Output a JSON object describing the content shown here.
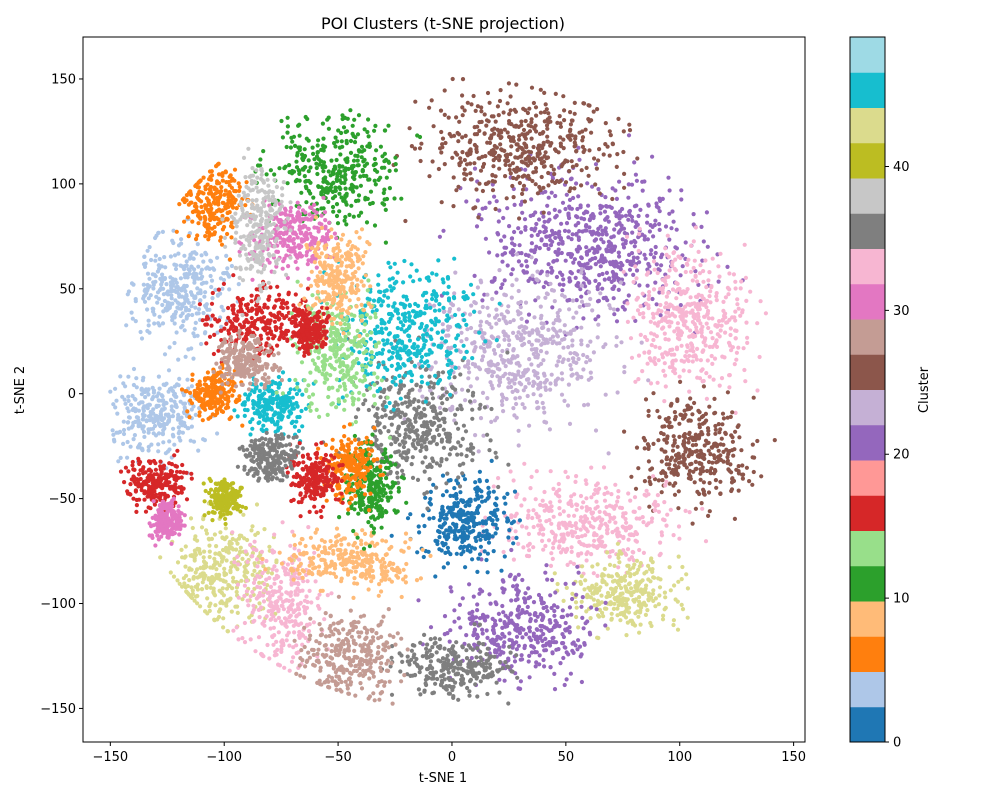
{
  "chart_data": {
    "type": "scatter",
    "title": "POI Clusters (t-SNE projection)",
    "xlabel": "t-SNE 1",
    "ylabel": "t-SNE 2",
    "xlim": [
      -162,
      155
    ],
    "ylim": [
      -166,
      170
    ],
    "xticks": [
      -150,
      -100,
      -50,
      0,
      50,
      100,
      150
    ],
    "yticks": [
      -150,
      -100,
      -50,
      0,
      50,
      100,
      150
    ],
    "grid": false,
    "legend": "none",
    "colorbar": {
      "label": "Cluster",
      "range": [
        0,
        49
      ],
      "ticks": [
        0,
        10,
        20,
        30,
        40
      ],
      "colormap": "tab20",
      "colors": [
        "#1f77b4",
        "#aec7e8",
        "#ff7f0e",
        "#ffbb78",
        "#2ca02c",
        "#98df8a",
        "#d62728",
        "#ff9896",
        "#9467bd",
        "#c5b0d5",
        "#8c564b",
        "#c49c94",
        "#e377c2",
        "#f7b6d2",
        "#7f7f7f",
        "#c7c7c7",
        "#bcbd22",
        "#dbdb8d",
        "#17becf",
        "#9edae5"
      ]
    },
    "series": [
      {
        "cluster": 22,
        "label": "purple upper-right",
        "center": [
          60,
          72
        ],
        "spread": [
          45,
          30
        ]
      },
      {
        "cluster": 26,
        "label": "brown top",
        "center": [
          30,
          118
        ],
        "spread": [
          38,
          22
        ]
      },
      {
        "cluster": 24,
        "label": "lavender center-right",
        "center": [
          30,
          20
        ],
        "spread": [
          35,
          30
        ]
      },
      {
        "cluster": 33,
        "label": "pink right",
        "center": [
          105,
          35
        ],
        "spread": [
          25,
          30
        ]
      },
      {
        "cluster": 26,
        "label": "brown right",
        "center": [
          108,
          -28
        ],
        "spread": [
          22,
          22
        ]
      },
      {
        "cluster": 33,
        "label": "pink lower-right",
        "center": [
          60,
          -62
        ],
        "spread": [
          35,
          18
        ]
      },
      {
        "cluster": 43,
        "label": "olive-light lower-right",
        "center": [
          75,
          -95
        ],
        "spread": [
          22,
          15
        ]
      },
      {
        "cluster": 22,
        "label": "purple bottom",
        "center": [
          30,
          -110
        ],
        "spread": [
          28,
          22
        ]
      },
      {
        "cluster": 37,
        "label": "grey bottom",
        "center": [
          0,
          -130
        ],
        "spread": [
          22,
          12
        ]
      },
      {
        "cluster": 0,
        "label": "blue center-bottom",
        "center": [
          5,
          -60
        ],
        "spread": [
          18,
          20
        ]
      },
      {
        "cluster": 37,
        "label": "grey center",
        "center": [
          -15,
          -15
        ],
        "spread": [
          25,
          25
        ]
      },
      {
        "cluster": 47,
        "label": "light cyan center",
        "center": [
          -20,
          30
        ],
        "spread": [
          25,
          28
        ]
      },
      {
        "cluster": 10,
        "label": "green top",
        "center": [
          -50,
          105
        ],
        "spread": [
          25,
          22
        ]
      },
      {
        "cluster": 30,
        "label": "magenta upper-left",
        "center": [
          -70,
          75
        ],
        "spread": [
          15,
          15
        ]
      },
      {
        "cluster": 4,
        "label": "green left",
        "center": [
          -120,
          50
        ],
        "spread": [
          20,
          22
        ]
      },
      {
        "cluster": 17,
        "label": "salmon left",
        "center": [
          -85,
          35
        ],
        "spread": [
          20,
          15
        ]
      },
      {
        "cluster": 6,
        "label": "orange upper-left",
        "center": [
          -105,
          90
        ],
        "spread": [
          12,
          15
        ]
      },
      {
        "cluster": 3,
        "label": "light blue left",
        "center": [
          -130,
          -10
        ],
        "spread": [
          18,
          18
        ]
      },
      {
        "cluster": 7,
        "label": "orange left",
        "center": [
          -105,
          0
        ],
        "spread": [
          10,
          10
        ]
      },
      {
        "cluster": 45,
        "label": "cyan left",
        "center": [
          -78,
          -5
        ],
        "spread": [
          12,
          12
        ]
      },
      {
        "cluster": 16,
        "label": "red lower-left",
        "center": [
          -130,
          -42
        ],
        "spread": [
          12,
          10
        ]
      },
      {
        "cluster": 43,
        "label": "olive-light lower-left",
        "center": [
          -100,
          -85
        ],
        "spread": [
          20,
          22
        ]
      },
      {
        "cluster": 34,
        "label": "pink lower-left",
        "center": [
          -75,
          -100
        ],
        "spread": [
          15,
          25
        ]
      },
      {
        "cluster": 9,
        "label": "peach bottom",
        "center": [
          -45,
          -80
        ],
        "spread": [
          25,
          12
        ]
      },
      {
        "cluster": 28,
        "label": "tan bottom",
        "center": [
          -45,
          -125
        ],
        "spread": [
          20,
          18
        ]
      },
      {
        "cluster": 14,
        "label": "light green center-left",
        "center": [
          -50,
          20
        ],
        "spread": [
          15,
          25
        ]
      },
      {
        "cluster": 8,
        "label": "peach upper-left",
        "center": [
          -50,
          55
        ],
        "spread": [
          12,
          20
        ]
      },
      {
        "cluster": 39,
        "label": "light grey upper-left",
        "center": [
          -85,
          80
        ],
        "spread": [
          10,
          25
        ]
      },
      {
        "cluster": 12,
        "label": "green center",
        "center": [
          -35,
          -45
        ],
        "spread": [
          10,
          18
        ]
      },
      {
        "cluster": 6,
        "label": "orange center",
        "center": [
          -45,
          -35
        ],
        "spread": [
          10,
          15
        ]
      },
      {
        "cluster": 16,
        "label": "red center",
        "center": [
          -60,
          -40
        ],
        "spread": [
          10,
          12
        ]
      },
      {
        "cluster": 16,
        "label": "red upper",
        "center": [
          -63,
          30
        ],
        "spread": [
          7,
          8
        ]
      },
      {
        "cluster": 40,
        "label": "olive left",
        "center": [
          -100,
          -50
        ],
        "spread": [
          7,
          7
        ]
      },
      {
        "cluster": 36,
        "label": "grey left",
        "center": [
          -80,
          -30
        ],
        "spread": [
          10,
          10
        ]
      },
      {
        "cluster": 28,
        "label": "tan left",
        "center": [
          -90,
          15
        ],
        "spread": [
          12,
          10
        ]
      },
      {
        "cluster": 30,
        "label": "magenta lower-left",
        "center": [
          -125,
          -60
        ],
        "spread": [
          6,
          8
        ]
      }
    ]
  }
}
